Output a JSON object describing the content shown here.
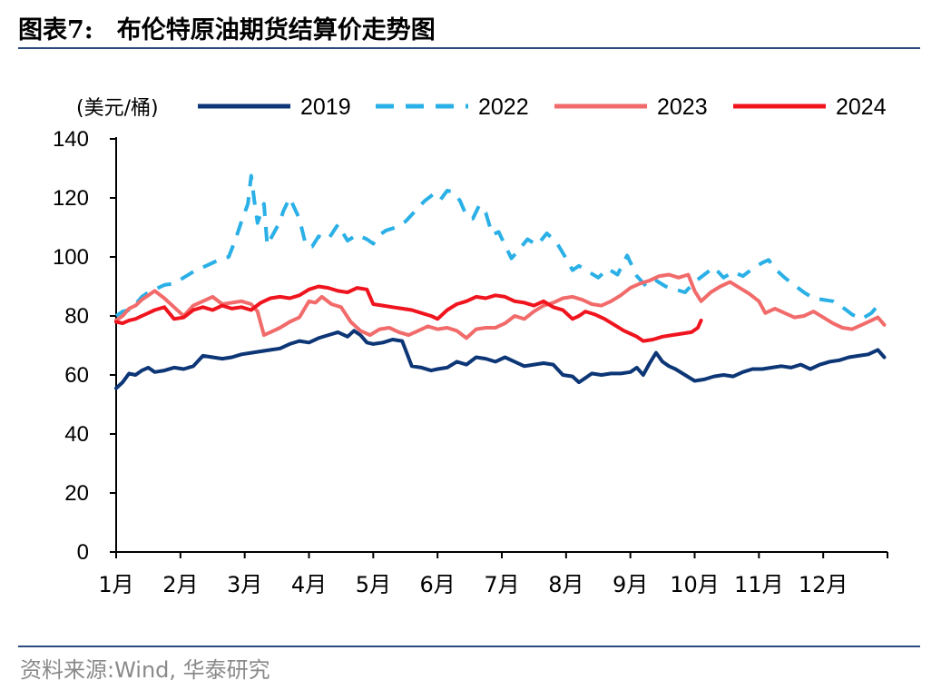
{
  "title": {
    "number": "图表7:",
    "text": "布伦特原油期货结算价走势图"
  },
  "source": "资料来源:Wind, 华泰研究",
  "chart_data": {
    "type": "line",
    "unit_label": "(美元/桶)",
    "xlabel": "",
    "ylabel": "",
    "ylim": [
      0,
      140
    ],
    "yticks": [
      0,
      20,
      40,
      60,
      80,
      100,
      120,
      140
    ],
    "xtick_labels": [
      "1月",
      "2月",
      "3月",
      "4月",
      "5月",
      "6月",
      "7月",
      "8月",
      "9月",
      "10月",
      "11月",
      "12月"
    ],
    "x_unit": "month-of-year (1 = start of January, 13 = end of December)",
    "xlim": [
      1,
      13
    ],
    "grid": false,
    "legend_position": "top",
    "series": [
      {
        "name": "2019",
        "color": "#0d3676",
        "dash": "solid",
        "x": [
          1.0,
          1.1,
          1.2,
          1.3,
          1.4,
          1.5,
          1.6,
          1.75,
          1.9,
          2.05,
          2.2,
          2.35,
          2.5,
          2.65,
          2.8,
          2.95,
          3.1,
          3.25,
          3.4,
          3.55,
          3.7,
          3.85,
          4.0,
          4.15,
          4.3,
          4.45,
          4.6,
          4.7,
          4.8,
          4.9,
          5.0,
          5.15,
          5.3,
          5.45,
          5.6,
          5.75,
          5.9,
          6.0,
          6.15,
          6.3,
          6.45,
          6.6,
          6.75,
          6.9,
          7.05,
          7.2,
          7.35,
          7.5,
          7.65,
          7.8,
          7.95,
          8.1,
          8.2,
          8.3,
          8.4,
          8.55,
          8.7,
          8.85,
          9.0,
          9.1,
          9.2,
          9.3,
          9.4,
          9.5,
          9.6,
          9.7,
          9.85,
          10.0,
          10.15,
          10.3,
          10.45,
          10.6,
          10.75,
          10.9,
          11.05,
          11.2,
          11.35,
          11.5,
          11.65,
          11.8,
          11.95,
          12.1,
          12.25,
          12.4,
          12.55,
          12.7,
          12.85,
          12.95
        ],
        "values": [
          55.5,
          57.5,
          60.5,
          60.0,
          61.5,
          62.5,
          61.0,
          61.5,
          62.5,
          62.0,
          63.0,
          66.5,
          66.0,
          65.5,
          66.0,
          67.0,
          67.5,
          68.0,
          68.5,
          69.0,
          70.5,
          71.5,
          71.0,
          72.5,
          73.5,
          74.5,
          73.0,
          75.0,
          73.5,
          71.0,
          70.5,
          71.0,
          72.0,
          71.5,
          63.0,
          62.5,
          61.5,
          62.0,
          62.5,
          64.5,
          63.5,
          66.0,
          65.5,
          64.5,
          66.0,
          64.5,
          63.0,
          63.5,
          64.0,
          63.5,
          60.0,
          59.5,
          57.5,
          59.0,
          60.5,
          60.0,
          60.5,
          60.5,
          61.0,
          62.5,
          60.0,
          64.0,
          67.5,
          64.5,
          63.0,
          62.0,
          60.0,
          58.0,
          58.5,
          59.5,
          60.0,
          59.5,
          61.0,
          62.0,
          62.0,
          62.5,
          63.0,
          62.5,
          63.5,
          62.0,
          63.5,
          64.5,
          65.0,
          66.0,
          66.5,
          67.0,
          68.5,
          66.0
        ]
      },
      {
        "name": "2022",
        "color": "#2ab0e6",
        "dash": "dashed",
        "x": [
          1.0,
          1.1,
          1.2,
          1.3,
          1.4,
          1.5,
          1.6,
          1.75,
          1.9,
          2.05,
          2.2,
          2.35,
          2.5,
          2.65,
          2.75,
          2.85,
          2.95,
          3.05,
          3.1,
          3.15,
          3.2,
          3.3,
          3.35,
          3.45,
          3.55,
          3.6,
          3.7,
          3.85,
          3.95,
          4.05,
          4.15,
          4.3,
          4.45,
          4.6,
          4.75,
          4.9,
          5.0,
          5.1,
          5.2,
          5.35,
          5.5,
          5.65,
          5.8,
          5.95,
          6.05,
          6.15,
          6.25,
          6.35,
          6.45,
          6.55,
          6.65,
          6.75,
          6.85,
          6.95,
          7.05,
          7.15,
          7.25,
          7.4,
          7.55,
          7.7,
          7.85,
          8.0,
          8.1,
          8.2,
          8.35,
          8.5,
          8.65,
          8.8,
          8.95,
          9.1,
          9.25,
          9.4,
          9.55,
          9.7,
          9.85,
          10.0,
          10.15,
          10.3,
          10.45,
          10.6,
          10.75,
          10.9,
          11.05,
          11.15,
          11.25,
          11.4,
          11.55,
          11.7,
          11.85,
          12.0,
          12.15,
          12.3,
          12.45,
          12.6,
          12.75,
          12.85,
          12.95
        ],
        "values": [
          80.0,
          81.5,
          82.0,
          84.0,
          86.5,
          88.0,
          89.0,
          90.5,
          91.0,
          93.0,
          95.0,
          96.5,
          98.0,
          99.5,
          100.0,
          105.5,
          112.0,
          118.0,
          127.5,
          119.0,
          111.5,
          118.0,
          104.0,
          108.0,
          112.0,
          115.5,
          120.0,
          113.0,
          104.0,
          103.5,
          107.0,
          106.0,
          111.0,
          105.5,
          107.5,
          106.0,
          104.5,
          107.5,
          109.0,
          110.0,
          112.0,
          115.5,
          119.0,
          121.5,
          119.5,
          122.5,
          122.0,
          119.0,
          114.0,
          113.0,
          117.5,
          115.0,
          107.5,
          108.5,
          104.0,
          99.5,
          102.0,
          106.0,
          104.0,
          108.0,
          105.0,
          99.5,
          95.5,
          97.0,
          95.0,
          93.0,
          96.0,
          94.0,
          100.5,
          93.5,
          90.0,
          92.0,
          90.0,
          89.0,
          88.0,
          91.5,
          94.0,
          96.5,
          93.0,
          95.0,
          93.5,
          96.0,
          98.0,
          99.0,
          96.0,
          93.0,
          90.5,
          88.0,
          86.0,
          85.5,
          85.0,
          83.0,
          80.5,
          79.0,
          81.0,
          83.5,
          84.0
        ]
      },
      {
        "name": "2023",
        "color": "#f26b6b",
        "dash": "solid",
        "x": [
          1.0,
          1.1,
          1.2,
          1.3,
          1.4,
          1.5,
          1.6,
          1.75,
          1.9,
          2.05,
          2.2,
          2.35,
          2.5,
          2.65,
          2.8,
          2.95,
          3.1,
          3.2,
          3.3,
          3.4,
          3.55,
          3.7,
          3.85,
          4.0,
          4.1,
          4.2,
          4.35,
          4.5,
          4.65,
          4.8,
          4.95,
          5.1,
          5.25,
          5.4,
          5.55,
          5.7,
          5.85,
          6.0,
          6.15,
          6.3,
          6.45,
          6.6,
          6.75,
          6.9,
          7.05,
          7.2,
          7.35,
          7.5,
          7.65,
          7.8,
          7.95,
          8.1,
          8.25,
          8.4,
          8.55,
          8.7,
          8.85,
          9.0,
          9.15,
          9.3,
          9.45,
          9.6,
          9.75,
          9.9,
          10.0,
          10.1,
          10.25,
          10.4,
          10.55,
          10.7,
          10.85,
          11.0,
          11.1,
          11.25,
          11.4,
          11.55,
          11.7,
          11.85,
          12.0,
          12.15,
          12.3,
          12.45,
          12.6,
          12.75,
          12.85,
          12.95
        ],
        "values": [
          78.5,
          80.0,
          82.5,
          83.5,
          85.5,
          87.0,
          88.5,
          86.0,
          83.0,
          80.0,
          83.5,
          85.0,
          86.5,
          84.0,
          84.5,
          85.0,
          84.0,
          81.5,
          73.5,
          74.5,
          76.0,
          78.0,
          79.5,
          85.0,
          84.5,
          86.5,
          84.0,
          83.0,
          78.0,
          75.0,
          73.5,
          75.5,
          76.0,
          74.5,
          73.5,
          75.0,
          76.5,
          75.5,
          76.0,
          75.0,
          72.5,
          75.5,
          76.0,
          76.0,
          77.5,
          80.0,
          79.0,
          81.5,
          83.5,
          84.5,
          86.0,
          86.5,
          85.5,
          84.0,
          83.5,
          85.0,
          87.0,
          89.5,
          91.0,
          92.0,
          93.5,
          94.0,
          93.0,
          94.0,
          88.5,
          85.0,
          88.0,
          90.0,
          91.5,
          89.5,
          87.5,
          85.0,
          81.0,
          82.5,
          81.0,
          79.5,
          80.0,
          81.5,
          79.5,
          77.5,
          76.0,
          75.5,
          77.0,
          78.5,
          79.5,
          77.0
        ]
      },
      {
        "name": "2024",
        "color": "#f0141e",
        "dash": "solid",
        "x": [
          1.0,
          1.1,
          1.2,
          1.3,
          1.4,
          1.5,
          1.6,
          1.75,
          1.9,
          2.05,
          2.2,
          2.35,
          2.5,
          2.65,
          2.8,
          2.95,
          3.1,
          3.25,
          3.4,
          3.55,
          3.7,
          3.85,
          4.0,
          4.15,
          4.3,
          4.45,
          4.6,
          4.75,
          4.9,
          5.0,
          5.15,
          5.3,
          5.45,
          5.6,
          5.75,
          5.9,
          6.0,
          6.15,
          6.3,
          6.45,
          6.6,
          6.75,
          6.9,
          7.05,
          7.2,
          7.35,
          7.5,
          7.65,
          7.8,
          7.95,
          8.1,
          8.2,
          8.3,
          8.45,
          8.6,
          8.75,
          8.9,
          9.0,
          9.1,
          9.2,
          9.35,
          9.5,
          9.65,
          9.8,
          9.95,
          10.05,
          10.1
        ],
        "values": [
          78.0,
          77.5,
          78.5,
          79.0,
          80.0,
          81.0,
          82.0,
          83.0,
          79.0,
          79.5,
          82.0,
          83.0,
          82.0,
          83.5,
          82.5,
          83.0,
          82.0,
          84.5,
          86.0,
          86.5,
          86.0,
          87.0,
          89.0,
          90.0,
          89.5,
          88.5,
          88.0,
          89.5,
          89.0,
          84.0,
          83.5,
          83.0,
          82.5,
          82.0,
          81.0,
          80.0,
          79.0,
          82.0,
          84.0,
          85.0,
          86.5,
          86.0,
          87.0,
          86.5,
          85.0,
          84.5,
          83.5,
          85.0,
          83.0,
          82.0,
          79.0,
          80.0,
          81.5,
          80.5,
          79.0,
          77.0,
          75.0,
          74.0,
          73.0,
          71.5,
          72.0,
          73.0,
          73.5,
          74.0,
          74.5,
          76.0,
          78.5
        ]
      }
    ]
  }
}
